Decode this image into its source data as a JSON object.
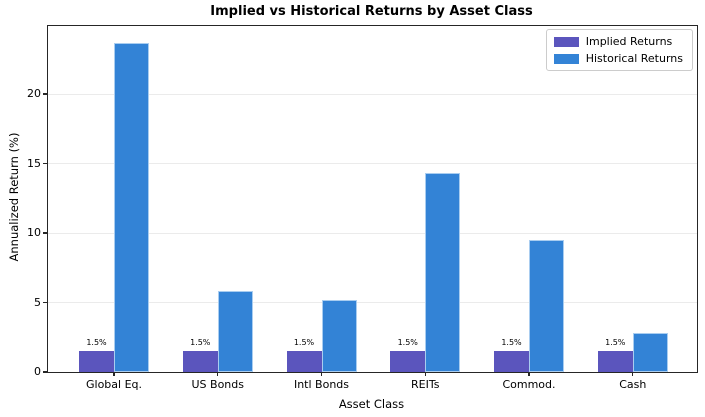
{
  "chart_data": {
    "type": "bar",
    "title": "Implied vs Historical Returns by Asset Class",
    "xlabel": "Asset Class",
    "ylabel": "Annualized Return (%)",
    "categories": [
      "Global Eq.",
      "US Bonds",
      "Intl Bonds",
      "REITs",
      "Commod.",
      "Cash"
    ],
    "series": [
      {
        "name": "Implied Returns",
        "color": "#5B55BD",
        "values": [
          1.5,
          1.5,
          1.5,
          1.5,
          1.5,
          1.5
        ]
      },
      {
        "name": "Historical Returns",
        "color": "#3383D6",
        "values": [
          23.7,
          5.8,
          5.2,
          14.3,
          9.5,
          2.8
        ]
      }
    ],
    "bar_annotations": [
      "1.5%",
      "1.5%",
      "1.5%",
      "1.5%",
      "1.5%",
      "1.5%"
    ],
    "yticks": [
      0,
      5,
      10,
      15,
      20
    ],
    "ylim": [
      0,
      24.9
    ],
    "grid": "horizontal",
    "gridline_color": "#ebebeb",
    "legend_position": "upper right"
  }
}
